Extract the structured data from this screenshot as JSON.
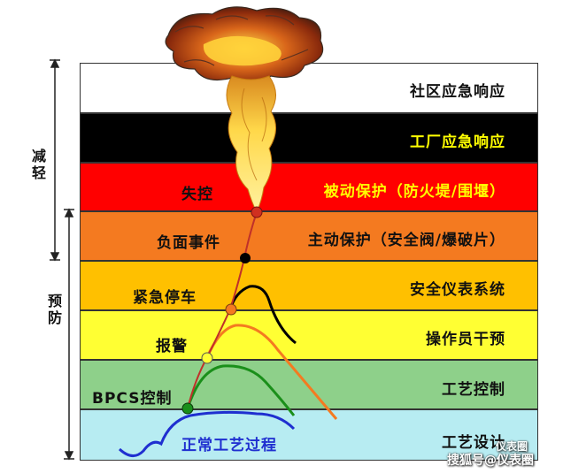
{
  "bands": [
    {
      "label": "社区应急响应",
      "fill": "#ffffff",
      "text_color": "#111111"
    },
    {
      "label": "工厂应急响应",
      "fill": "#000000",
      "text_color": "#ffff00"
    },
    {
      "label": "被动保护（防火堤/围堰）",
      "fill": "#ff0000",
      "text_color": "#ffff00"
    },
    {
      "label": "主动保护（安全阀/爆破片）",
      "fill": "#f47a20",
      "text_color": "#111111"
    },
    {
      "label": "安全仪表系统",
      "fill": "#ffc000",
      "text_color": "#111111"
    },
    {
      "label": "操作员干预",
      "fill": "#ffff33",
      "text_color": "#111111"
    },
    {
      "label": "工艺控制",
      "fill": "#8ed08a",
      "text_color": "#111111"
    },
    {
      "label": "工艺设计",
      "fill": "#b7ecf2",
      "text_color": "#111111"
    }
  ],
  "events": {
    "loss_of_control": "失控",
    "adverse_event": "负面事件",
    "emergency_shutdown": "紧急停车",
    "alarm": "报警",
    "bpcs_control": "BPCS控制",
    "normal_process": "正常工艺过程"
  },
  "side": {
    "mitigation": "减轻",
    "prevention": "预防"
  },
  "watermark": {
    "line1": "仪表圈",
    "line2": "搜狐号@仪表圈"
  },
  "colors": {
    "normal_curve": "#1f2fd0",
    "bpcs_curve": "#1a8f1a",
    "alarm_curve": "#f47a20",
    "shutdown_curve": "#000000",
    "trajectory": "#c0302a",
    "normal_text": "#1f2fd0"
  }
}
